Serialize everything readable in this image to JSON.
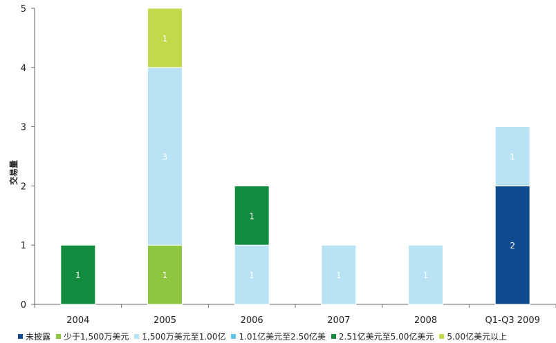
{
  "chart_data": {
    "type": "bar",
    "stacked": true,
    "categories": [
      "2004",
      "2005",
      "2006",
      "2007",
      "2008",
      "Q1-Q3 2009"
    ],
    "ylabel": "交易量",
    "xlabel": "",
    "ylim": [
      0,
      5
    ],
    "yticks": [
      "0",
      "1",
      "2",
      "3",
      "4",
      "5"
    ],
    "series": [
      {
        "name": "未披露",
        "color": "#124a8f",
        "values": [
          0,
          0,
          0,
          0,
          0,
          2
        ]
      },
      {
        "name": "少于1,500万美元",
        "color": "#8dc63f",
        "values": [
          0,
          1,
          0,
          0,
          0,
          0
        ]
      },
      {
        "name": "1,500万美元至1.00亿",
        "color": "#b9e3f5",
        "values": [
          0,
          3,
          1,
          1,
          1,
          1
        ]
      },
      {
        "name": "1.01亿美元至2.50亿美",
        "color": "#60c3e8",
        "values": [
          0,
          0,
          0,
          0,
          0,
          0
        ]
      },
      {
        "name": "2.51亿美元至5.00亿美元",
        "color": "#138c40",
        "values": [
          1,
          0,
          1,
          0,
          0,
          0
        ]
      },
      {
        "name": "5.00亿美元以上",
        "color": "#c2d94a",
        "values": [
          0,
          1,
          0,
          0,
          0,
          0
        ]
      }
    ],
    "segment_labels": true,
    "grid": false,
    "legend_position": "bottom"
  }
}
